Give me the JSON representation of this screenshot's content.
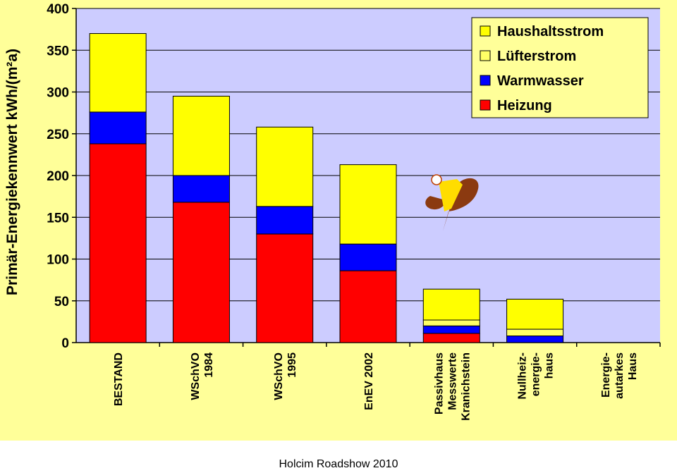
{
  "footer": "Holcim Roadshow 2010",
  "logo": {
    "name": "passivhaus-logo-icon"
  },
  "chart_data": {
    "type": "bar",
    "stacked": true,
    "ylabel": "Primär-Energiekennwert  kWh/(m²a)",
    "xlabel": "",
    "ylim": [
      0,
      400
    ],
    "yticks": [
      0,
      50,
      100,
      150,
      200,
      250,
      300,
      350,
      400
    ],
    "grid": true,
    "legend_position": "top-right",
    "categories": [
      [
        "BESTAND"
      ],
      [
        "WSchVO",
        "1984"
      ],
      [
        "WSchVO",
        "1995"
      ],
      [
        "EnEV 2002"
      ],
      [
        "Passivhaus",
        "Messwerte",
        "Kranichstein"
      ],
      [
        "Nullheiz-",
        "energie-",
        "haus"
      ],
      [
        "Energie-",
        "autarkes",
        "Haus"
      ]
    ],
    "series": [
      {
        "name": "Heizung",
        "color": "#ff0000",
        "values": [
          238,
          168,
          130,
          86,
          11,
          0,
          0
        ]
      },
      {
        "name": "Warmwasser",
        "color": "#0000ff",
        "values": [
          38,
          32,
          33,
          32,
          9,
          8,
          0
        ]
      },
      {
        "name": "Lüfterstrom",
        "color": "#ffff66",
        "values": [
          0,
          0,
          0,
          0,
          7,
          8,
          0
        ]
      },
      {
        "name": "Haushaltsstrom",
        "color": "#ffff00",
        "values": [
          94,
          95,
          95,
          95,
          37,
          36,
          0
        ]
      }
    ],
    "legend_order": [
      "Haushaltsstrom",
      "Lüfterstrom",
      "Warmwasser",
      "Heizung"
    ],
    "colors": {
      "plot_background": "#ccccff",
      "page_background": "#ffff99",
      "grid": "#000000"
    }
  }
}
